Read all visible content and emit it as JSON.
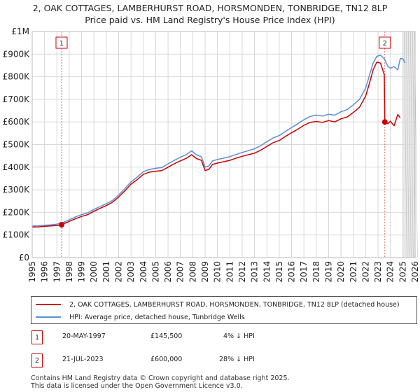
{
  "header": {
    "title_line1": "2, OAK COTTAGES, LAMBERHURST ROAD, HORSMONDEN, TONBRIDGE, TN12 8LP",
    "title_line2": "Price paid vs. HM Land Registry's House Price Index (HPI)"
  },
  "chart_data": {
    "type": "line",
    "title": "Price paid vs. HM Land Registry's House Price Index (HPI)",
    "xlabel": "",
    "ylabel": "",
    "xlim": [
      1995,
      2026
    ],
    "ylim": [
      0,
      1000000
    ],
    "x_ticks": [
      "1995",
      "1996",
      "1997",
      "1998",
      "1999",
      "2000",
      "2001",
      "2002",
      "2003",
      "2004",
      "2005",
      "2006",
      "2007",
      "2008",
      "2009",
      "2010",
      "2011",
      "2012",
      "2013",
      "2014",
      "2015",
      "2016",
      "2017",
      "2018",
      "2019",
      "2020",
      "2021",
      "2022",
      "2023",
      "2024",
      "2025",
      "2026"
    ],
    "y_ticks": [
      {
        "value": 0,
        "label": "£0"
      },
      {
        "value": 100000,
        "label": "£100K"
      },
      {
        "value": 200000,
        "label": "£200K"
      },
      {
        "value": 300000,
        "label": "£300K"
      },
      {
        "value": 400000,
        "label": "£400K"
      },
      {
        "value": 500000,
        "label": "£500K"
      },
      {
        "value": 600000,
        "label": "£600K"
      },
      {
        "value": 700000,
        "label": "£700K"
      },
      {
        "value": 800000,
        "label": "£800K"
      },
      {
        "value": 900000,
        "label": "£900K"
      },
      {
        "value": 1000000,
        "label": "£1M"
      }
    ],
    "grid": true,
    "forecast_shade_start": 2025.0,
    "series": [
      {
        "name": "2, OAK COTTAGES, LAMBERHURST ROAD, HORSMONDEN, TONBRIDGE, TN12 8LP (detached house)",
        "color": "#cc0000",
        "x": [
          1995.0,
          1995.5,
          1996.0,
          1996.5,
          1997.0,
          1997.38,
          1998.0,
          1998.5,
          1999.0,
          1999.5,
          2000.0,
          2000.5,
          2001.0,
          2001.5,
          2002.0,
          2002.5,
          2003.0,
          2003.5,
          2004.0,
          2004.5,
          2005.0,
          2005.5,
          2006.0,
          2006.5,
          2007.0,
          2007.5,
          2007.9,
          2008.3,
          2008.7,
          2009.0,
          2009.3,
          2009.6,
          2010.0,
          2010.5,
          2011.0,
          2011.5,
          2012.0,
          2012.5,
          2013.0,
          2013.5,
          2014.0,
          2014.5,
          2015.0,
          2015.5,
          2016.0,
          2016.5,
          2017.0,
          2017.5,
          2018.0,
          2018.5,
          2019.0,
          2019.5,
          2020.0,
          2020.5,
          2021.0,
          2021.5,
          2022.0,
          2022.3,
          2022.6,
          2022.9,
          2023.2,
          2023.5,
          2023.55,
          2023.8,
          2024.0,
          2024.3,
          2024.6,
          2024.8
        ],
        "values": [
          135000,
          136000,
          138000,
          140000,
          142000,
          145500,
          160000,
          172000,
          182000,
          190000,
          205000,
          218000,
          230000,
          245000,
          268000,
          295000,
          325000,
          345000,
          368000,
          378000,
          382000,
          385000,
          400000,
          415000,
          428000,
          440000,
          455000,
          438000,
          430000,
          385000,
          390000,
          412000,
          418000,
          424000,
          430000,
          440000,
          448000,
          455000,
          462000,
          475000,
          492000,
          508000,
          518000,
          536000,
          552000,
          568000,
          585000,
          598000,
          602000,
          598000,
          606000,
          600000,
          614000,
          622000,
          642000,
          665000,
          715000,
          770000,
          830000,
          865000,
          860000,
          810000,
          600000,
          592000,
          603000,
          583000,
          633000,
          618000
        ]
      },
      {
        "name": "HPI: Average price, detached house, Tunbridge Wells",
        "color": "#5b8fd6",
        "x": [
          1995.0,
          1995.5,
          1996.0,
          1996.5,
          1997.0,
          1997.38,
          1998.0,
          1998.5,
          1999.0,
          1999.5,
          2000.0,
          2000.5,
          2001.0,
          2001.5,
          2002.0,
          2002.5,
          2003.0,
          2003.5,
          2004.0,
          2004.5,
          2005.0,
          2005.5,
          2006.0,
          2006.5,
          2007.0,
          2007.5,
          2007.9,
          2008.3,
          2008.7,
          2009.0,
          2009.3,
          2009.6,
          2010.0,
          2010.5,
          2011.0,
          2011.5,
          2012.0,
          2012.5,
          2013.0,
          2013.5,
          2014.0,
          2014.5,
          2015.0,
          2015.5,
          2016.0,
          2016.5,
          2017.0,
          2017.5,
          2018.0,
          2018.5,
          2019.0,
          2019.5,
          2020.0,
          2020.5,
          2021.0,
          2021.5,
          2022.0,
          2022.3,
          2022.6,
          2022.9,
          2023.2,
          2023.5,
          2023.8,
          2024.0,
          2024.3,
          2024.6,
          2024.8,
          2025.0,
          2025.2
        ],
        "values": [
          140000,
          141000,
          143000,
          145000,
          148000,
          152000,
          167000,
          180000,
          190000,
          198000,
          213000,
          226000,
          238000,
          253000,
          277000,
          305000,
          335000,
          356000,
          380000,
          390000,
          395000,
          398000,
          415000,
          430000,
          444000,
          456000,
          472000,
          455000,
          446000,
          400000,
          405000,
          428000,
          434000,
          440000,
          446000,
          456000,
          465000,
          473000,
          481000,
          495000,
          513000,
          529000,
          540000,
          558000,
          575000,
          592000,
          610000,
          624000,
          630000,
          626000,
          634000,
          630000,
          645000,
          655000,
          676000,
          700000,
          750000,
          805000,
          860000,
          890000,
          895000,
          880000,
          845000,
          838000,
          845000,
          830000,
          880000,
          880000,
          860000
        ]
      }
    ],
    "sales": [
      {
        "label": "1",
        "year": 1997.38,
        "price": 145500
      },
      {
        "label": "2",
        "year": 2023.55,
        "price": 600000
      }
    ]
  },
  "legend": {
    "items": [
      {
        "label": "2, OAK COTTAGES, LAMBERHURST ROAD, HORSMONDEN, TONBRIDGE, TN12 8LP (detached house)",
        "color": "#cc0000"
      },
      {
        "label": "HPI: Average price, detached house, Tunbridge Wells",
        "color": "#5b8fd6"
      }
    ]
  },
  "sales_table": [
    {
      "num": "1",
      "date": "20-MAY-1997",
      "price": "£145,500",
      "hpi": "4% ↓ HPI"
    },
    {
      "num": "2",
      "date": "21-JUL-2023",
      "price": "£600,000",
      "hpi": "28% ↓ HPI"
    }
  ],
  "footer": {
    "line1": "Contains HM Land Registry data © Crown copyright and database right 2025.",
    "line2": "This data is licensed under the Open Government Licence v3.0."
  }
}
